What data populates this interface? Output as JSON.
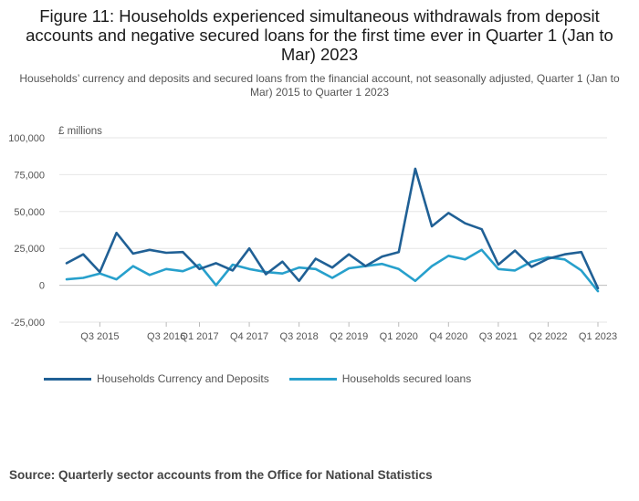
{
  "title": "Figure 11: Households experienced simultaneous withdrawals from deposit accounts and negative secured loans for the first time ever in Quarter 1 (Jan to Mar) 2023",
  "subtitle": "Households’ currency and deposits and secured loans from the financial account, not seasonally adjusted, Quarter 1 (Jan to Mar) 2015 to Quarter 1 2023",
  "source": "Source: Quarterly sector accounts from the Office for National Statistics",
  "colors": {
    "series1": "#206095",
    "series2": "#27a0cc",
    "grid": "#e6e6e6",
    "axis_text": "#555555"
  },
  "chart_data": {
    "type": "line",
    "ylabel": "£ millions",
    "ylim": [
      -25000,
      100000
    ],
    "yticks": [
      -25000,
      0,
      25000,
      50000,
      75000,
      100000
    ],
    "ytick_labels": [
      "-25,000",
      "0",
      "25,000",
      "50,000",
      "75,000",
      "100,000"
    ],
    "x": [
      "Q1 2015",
      "Q2 2015",
      "Q3 2015",
      "Q4 2015",
      "Q1 2016",
      "Q2 2016",
      "Q3 2016",
      "Q4 2016",
      "Q1 2017",
      "Q2 2017",
      "Q3 2017",
      "Q4 2017",
      "Q1 2018",
      "Q2 2018",
      "Q3 2018",
      "Q4 2018",
      "Q1 2019",
      "Q2 2019",
      "Q3 2019",
      "Q4 2019",
      "Q1 2020",
      "Q2 2020",
      "Q3 2020",
      "Q4 2020",
      "Q1 2021",
      "Q2 2021",
      "Q3 2021",
      "Q4 2021",
      "Q1 2022",
      "Q2 2022",
      "Q3 2022",
      "Q4 2022",
      "Q1 2023"
    ],
    "xtick_labels": [
      "Q3 2015",
      "Q3 2016",
      "Q1 2017",
      "Q4 2017",
      "Q3 2018",
      "Q2 2019",
      "Q1 2020",
      "Q4 2020",
      "Q3 2021",
      "Q2 2022",
      "Q1 2023"
    ],
    "grid": true,
    "legend_position": "bottom",
    "series": [
      {
        "name": "Households Currency and Deposits",
        "values": [
          15000,
          21000,
          9000,
          35500,
          21500,
          24000,
          22000,
          22500,
          11000,
          15000,
          10000,
          25000,
          7500,
          16000,
          3000,
          18000,
          12000,
          21000,
          13000,
          19500,
          22500,
          79000,
          40000,
          49000,
          42000,
          38000,
          14000,
          23500,
          12500,
          18000,
          21000,
          22500,
          -2000
        ]
      },
      {
        "name": "Households secured loans",
        "values": [
          4000,
          5000,
          8000,
          4000,
          13000,
          7000,
          11000,
          9500,
          14000,
          0,
          14000,
          11000,
          9000,
          8000,
          12000,
          11000,
          5000,
          11500,
          13000,
          14500,
          11000,
          3000,
          13000,
          20000,
          17500,
          24000,
          11000,
          10000,
          16000,
          19000,
          17500,
          10000,
          -4000
        ]
      }
    ]
  }
}
